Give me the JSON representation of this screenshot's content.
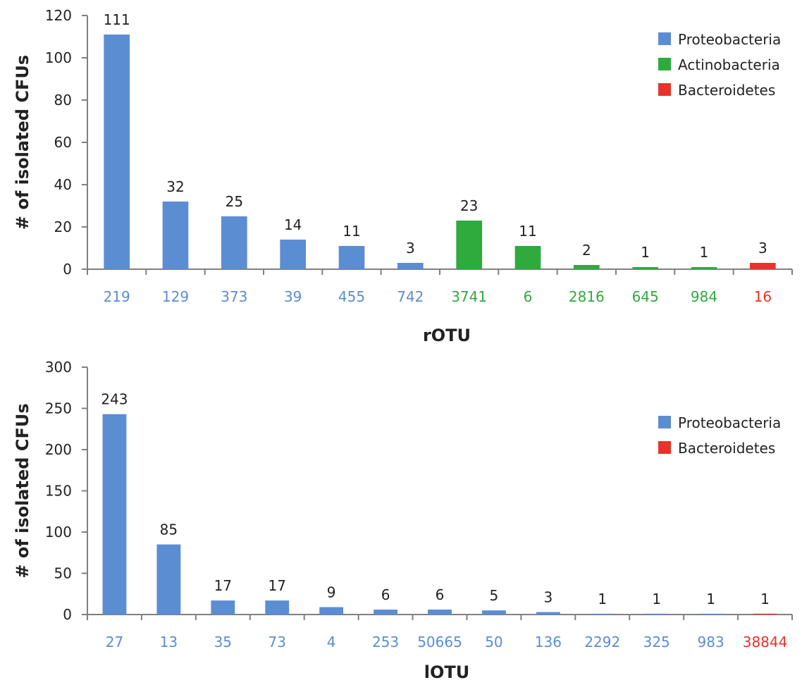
{
  "colors": {
    "Proteobacteria": "#5B8DD3",
    "Actinobacteria": "#2FAA3C",
    "Bacteroidetes": "#E8332B",
    "axis": "#808080"
  },
  "chart_data": [
    {
      "type": "bar",
      "xlabel": "rOTU",
      "ylabel": "# of isolated CFUs",
      "ylim": [
        0,
        120
      ],
      "yticks": [
        0,
        20,
        40,
        60,
        80,
        100,
        120
      ],
      "grid": false,
      "legend_position": "top-right",
      "legend": [
        "Proteobacteria",
        "Actinobacteria",
        "Bacteroidetes"
      ],
      "categories": [
        "219",
        "129",
        "373",
        "39",
        "455",
        "742",
        "3741",
        "6",
        "2816",
        "645",
        "984",
        "16"
      ],
      "values": [
        111,
        32,
        25,
        14,
        11,
        3,
        23,
        11,
        2,
        1,
        1,
        3
      ],
      "groups": [
        "Proteobacteria",
        "Proteobacteria",
        "Proteobacteria",
        "Proteobacteria",
        "Proteobacteria",
        "Proteobacteria",
        "Actinobacteria",
        "Actinobacteria",
        "Actinobacteria",
        "Actinobacteria",
        "Actinobacteria",
        "Bacteroidetes"
      ]
    },
    {
      "type": "bar",
      "xlabel": "lOTU",
      "ylabel": "# of isolated CFUs",
      "ylim": [
        0,
        300
      ],
      "yticks": [
        0,
        50,
        100,
        150,
        200,
        250,
        300
      ],
      "grid": false,
      "legend_position": "top-right",
      "legend": [
        "Proteobacteria",
        "Bacteroidetes"
      ],
      "categories": [
        "27",
        "13",
        "35",
        "73",
        "4",
        "253",
        "50665",
        "50",
        "136",
        "2292",
        "325",
        "983",
        "38844"
      ],
      "values": [
        243,
        85,
        17,
        17,
        9,
        6,
        6,
        5,
        3,
        1,
        1,
        1,
        1
      ],
      "groups": [
        "Proteobacteria",
        "Proteobacteria",
        "Proteobacteria",
        "Proteobacteria",
        "Proteobacteria",
        "Proteobacteria",
        "Proteobacteria",
        "Proteobacteria",
        "Proteobacteria",
        "Proteobacteria",
        "Proteobacteria",
        "Proteobacteria",
        "Bacteroidetes"
      ]
    }
  ]
}
